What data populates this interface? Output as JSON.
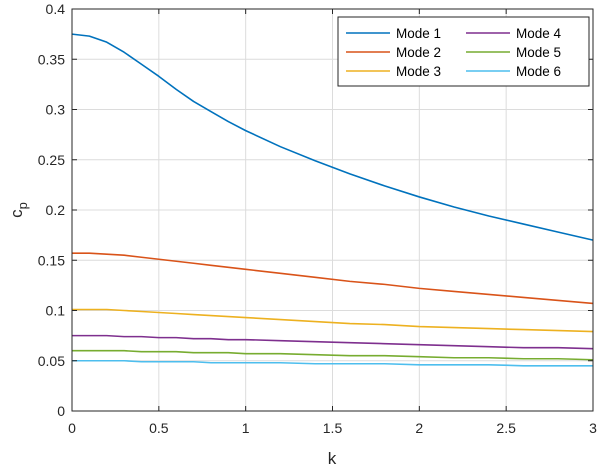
{
  "chart_data": {
    "type": "line",
    "xlabel": "k",
    "ylabel": "c",
    "ylabel_subscript": "p",
    "xlim": [
      0,
      3
    ],
    "ylim": [
      0,
      0.4
    ],
    "x_ticks": [
      "0",
      "0.5",
      "1",
      "1.5",
      "2",
      "2.5",
      "3"
    ],
    "y_ticks": [
      "0",
      "0.05",
      "0.1",
      "0.15",
      "0.2",
      "0.25",
      "0.3",
      "0.35",
      "0.4"
    ],
    "grid": true,
    "legend_position": "top-right",
    "legend_columns": 2,
    "x": [
      0,
      0.1,
      0.2,
      0.3,
      0.4,
      0.5,
      0.6,
      0.7,
      0.8,
      0.9,
      1.0,
      1.2,
      1.4,
      1.6,
      1.8,
      2.0,
      2.2,
      2.4,
      2.6,
      2.8,
      3.0
    ],
    "series": [
      {
        "name": "Mode 1",
        "color": "#0072BD",
        "values": [
          0.375,
          0.373,
          0.367,
          0.357,
          0.345,
          0.333,
          0.32,
          0.308,
          0.298,
          0.288,
          0.279,
          0.263,
          0.249,
          0.236,
          0.224,
          0.213,
          0.203,
          0.194,
          0.186,
          0.178,
          0.17
        ]
      },
      {
        "name": "Mode 2",
        "color": "#D95319",
        "values": [
          0.157,
          0.157,
          0.156,
          0.155,
          0.153,
          0.151,
          0.149,
          0.147,
          0.145,
          0.143,
          0.141,
          0.137,
          0.133,
          0.129,
          0.126,
          0.122,
          0.119,
          0.116,
          0.113,
          0.11,
          0.107
        ]
      },
      {
        "name": "Mode 3",
        "color": "#EDB120",
        "values": [
          0.101,
          0.101,
          0.101,
          0.1,
          0.099,
          0.098,
          0.097,
          0.096,
          0.095,
          0.094,
          0.093,
          0.091,
          0.089,
          0.087,
          0.086,
          0.084,
          0.083,
          0.082,
          0.081,
          0.08,
          0.079
        ]
      },
      {
        "name": "Mode 4",
        "color": "#7E2F8E",
        "values": [
          0.075,
          0.075,
          0.075,
          0.074,
          0.074,
          0.073,
          0.073,
          0.072,
          0.072,
          0.071,
          0.071,
          0.07,
          0.069,
          0.068,
          0.067,
          0.066,
          0.065,
          0.064,
          0.063,
          0.063,
          0.062
        ]
      },
      {
        "name": "Mode 5",
        "color": "#77AC30",
        "values": [
          0.06,
          0.06,
          0.06,
          0.06,
          0.059,
          0.059,
          0.059,
          0.058,
          0.058,
          0.058,
          0.057,
          0.057,
          0.056,
          0.055,
          0.055,
          0.054,
          0.053,
          0.053,
          0.052,
          0.052,
          0.051
        ]
      },
      {
        "name": "Mode 6",
        "color": "#4DBEEE",
        "values": [
          0.05,
          0.05,
          0.05,
          0.05,
          0.049,
          0.049,
          0.049,
          0.049,
          0.048,
          0.048,
          0.048,
          0.048,
          0.047,
          0.047,
          0.047,
          0.046,
          0.046,
          0.046,
          0.045,
          0.045,
          0.045
        ]
      }
    ]
  }
}
